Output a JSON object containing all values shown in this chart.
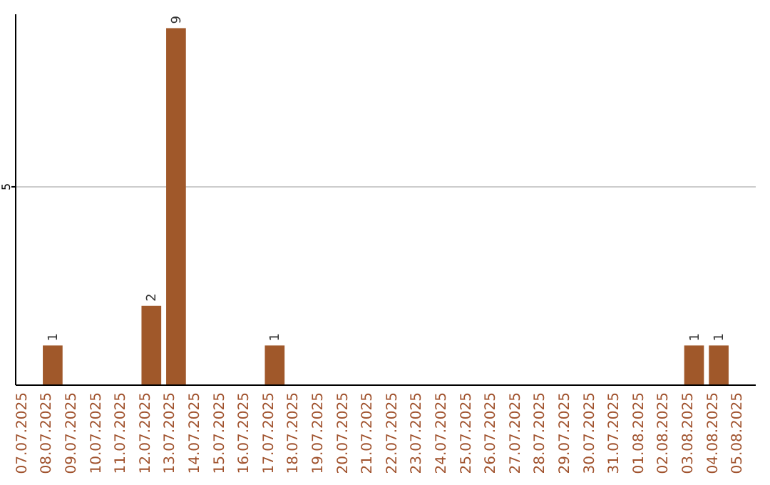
{
  "chart_data": {
    "type": "bar",
    "categories": [
      "07.07.2025",
      "08.07.2025",
      "09.07.2025",
      "10.07.2025",
      "11.07.2025",
      "12.07.2025",
      "13.07.2025",
      "14.07.2025",
      "15.07.2025",
      "16.07.2025",
      "17.07.2025",
      "18.07.2025",
      "19.07.2025",
      "20.07.2025",
      "21.07.2025",
      "22.07.2025",
      "23.07.2025",
      "24.07.2025",
      "25.07.2025",
      "26.07.2025",
      "27.07.2025",
      "28.07.2025",
      "29.07.2025",
      "30.07.2025",
      "31.07.2025",
      "01.08.2025",
      "02.08.2025",
      "03.08.2025",
      "04.08.2025",
      "05.08.2025"
    ],
    "values": [
      0,
      1,
      0,
      0,
      0,
      2,
      9,
      0,
      0,
      0,
      1,
      0,
      0,
      0,
      0,
      0,
      0,
      0,
      0,
      0,
      0,
      0,
      0,
      0,
      0,
      0,
      0,
      1,
      1,
      0
    ],
    "color": "#a0582a",
    "ylim": [
      0,
      9.35
    ],
    "yticks": [
      5
    ],
    "grid": "y",
    "value_labels": [
      null,
      "1",
      null,
      null,
      null,
      "2",
      "9",
      null,
      null,
      null,
      "1",
      null,
      null,
      null,
      null,
      null,
      null,
      null,
      null,
      null,
      null,
      null,
      null,
      null,
      null,
      null,
      null,
      "1",
      "1",
      null
    ]
  }
}
